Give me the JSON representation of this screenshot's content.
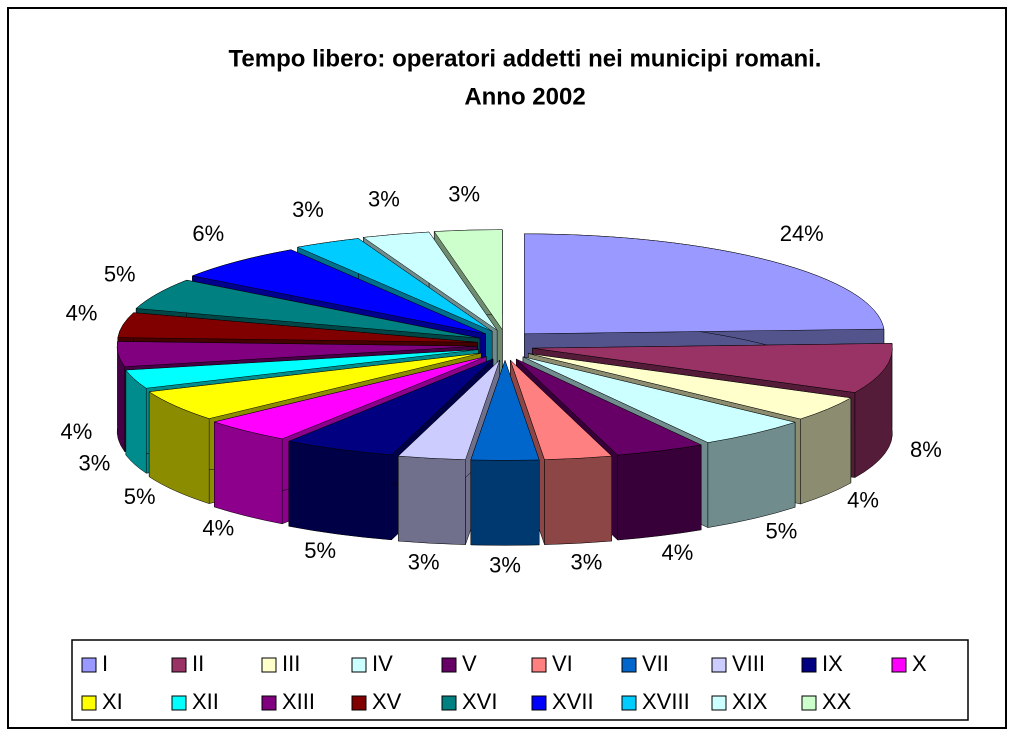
{
  "chart_data": {
    "type": "pie3d",
    "title": [
      "Tempo libero: operatori addetti nei municipi romani.",
      "Anno 2002"
    ],
    "categories": [
      "I",
      "II",
      "III",
      "IV",
      "V",
      "VI",
      "VII",
      "VIII",
      "IX",
      "X",
      "XI",
      "XII",
      "XIII",
      "XV",
      "XVI",
      "XVII",
      "XVIII",
      "XIX",
      "XX"
    ],
    "values": [
      24,
      8,
      4,
      5,
      4,
      3,
      3,
      3,
      5,
      4,
      5,
      3,
      4,
      4,
      5,
      6,
      3,
      3,
      3
    ],
    "value_labels": [
      "24%",
      "8%",
      "4%",
      "5%",
      "4%",
      "3%",
      "3%",
      "3%",
      "5%",
      "4%",
      "5%",
      "3%",
      "4%",
      "4%",
      "5%",
      "6%",
      "3%",
      "3%",
      "3%"
    ],
    "colors": [
      "#9999ff",
      "#993366",
      "#ffffcc",
      "#ccffff",
      "#660066",
      "#ff8080",
      "#0066cc",
      "#ccccff",
      "#000080",
      "#ff00ff",
      "#ffff00",
      "#00ffff",
      "#800080",
      "#800000",
      "#008080",
      "#0000ff",
      "#00ccff",
      "#ccffff",
      "#ccffcc"
    ],
    "legend": "bottom"
  }
}
